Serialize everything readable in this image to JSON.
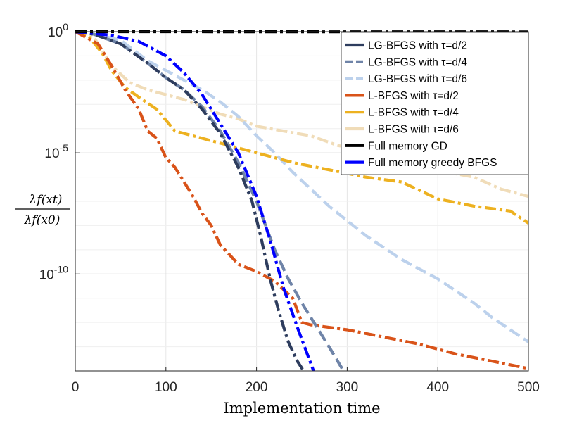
{
  "chart_data": {
    "type": "line",
    "title": "",
    "xlabel": "Implementation time",
    "ylabel_parts": {
      "numerator": "λf(xt)",
      "denominator": "λf(x0)"
    },
    "xlim": [
      0,
      500
    ],
    "ylim_log10": [
      -14,
      0
    ],
    "x_ticks": [
      {
        "value": 0,
        "label": "0"
      },
      {
        "value": 100,
        "label": "100"
      },
      {
        "value": 200,
        "label": "200"
      },
      {
        "value": 300,
        "label": "300"
      },
      {
        "value": 400,
        "label": "400"
      },
      {
        "value": 500,
        "label": "500"
      }
    ],
    "y_ticks": [
      {
        "value": 0,
        "base": "10",
        "exp": "0"
      },
      {
        "value": -5,
        "base": "10",
        "exp": "-5"
      },
      {
        "value": -10,
        "base": "10",
        "exp": "-10"
      }
    ],
    "grid": true,
    "legend_position": "top-right",
    "series": [
      {
        "name": "LG-BFGS with τ=d/2",
        "color": "#2e3d5e",
        "style": "dashdot",
        "points": [
          [
            0,
            0
          ],
          [
            20,
            -0.1
          ],
          [
            50,
            -0.5
          ],
          [
            80,
            -1.3
          ],
          [
            100,
            -1.9
          ],
          [
            120,
            -2.4
          ],
          [
            140,
            -3.2
          ],
          [
            160,
            -4.2
          ],
          [
            180,
            -5.6
          ],
          [
            195,
            -7
          ],
          [
            205,
            -8.5
          ],
          [
            215,
            -10.2
          ],
          [
            225,
            -11.6
          ],
          [
            235,
            -12.8
          ],
          [
            245,
            -13.6
          ],
          [
            252,
            -14
          ]
        ]
      },
      {
        "name": "LG-BFGS with τ=d/4",
        "color": "#6f84a8",
        "style": "dashed",
        "points": [
          [
            0,
            0
          ],
          [
            20,
            -0.1
          ],
          [
            50,
            -0.5
          ],
          [
            80,
            -1.3
          ],
          [
            100,
            -1.9
          ],
          [
            120,
            -2.4
          ],
          [
            140,
            -3.1
          ],
          [
            160,
            -4.1
          ],
          [
            180,
            -5.4
          ],
          [
            200,
            -7
          ],
          [
            210,
            -8
          ],
          [
            220,
            -9
          ],
          [
            235,
            -10.2
          ],
          [
            250,
            -11.2
          ],
          [
            265,
            -12.1
          ],
          [
            280,
            -13
          ],
          [
            296,
            -14
          ]
        ]
      },
      {
        "name": "LG-BFGS with τ=d/6",
        "color": "#bcd1ec",
        "style": "dashed",
        "points": [
          [
            0,
            0
          ],
          [
            20,
            -0.1
          ],
          [
            50,
            -0.35
          ],
          [
            80,
            -1.2
          ],
          [
            110,
            -1.8
          ],
          [
            140,
            -2.4
          ],
          [
            160,
            -2.9
          ],
          [
            180,
            -3.5
          ],
          [
            200,
            -4.3
          ],
          [
            220,
            -5
          ],
          [
            240,
            -5.8
          ],
          [
            260,
            -6.5
          ],
          [
            280,
            -7.2
          ],
          [
            300,
            -7.8
          ],
          [
            320,
            -8.4
          ],
          [
            340,
            -8.9
          ],
          [
            360,
            -9.4
          ],
          [
            380,
            -9.8
          ],
          [
            400,
            -10.2
          ],
          [
            420,
            -10.7
          ],
          [
            440,
            -11.2
          ],
          [
            460,
            -11.8
          ],
          [
            480,
            -12.3
          ],
          [
            500,
            -12.8
          ]
        ]
      },
      {
        "name": "L-BFGS with τ=d/2",
        "color": "#d95319",
        "style": "dashdot",
        "points": [
          [
            0,
            0
          ],
          [
            25,
            -0.5
          ],
          [
            40,
            -1.4
          ],
          [
            55,
            -2.4
          ],
          [
            70,
            -3.2
          ],
          [
            80,
            -4.1
          ],
          [
            90,
            -4.4
          ],
          [
            100,
            -5.2
          ],
          [
            110,
            -5.6
          ],
          [
            120,
            -6.2
          ],
          [
            130,
            -6.8
          ],
          [
            140,
            -7.5
          ],
          [
            150,
            -8.0
          ],
          [
            160,
            -8.8
          ],
          [
            170,
            -9.2
          ],
          [
            180,
            -9.6
          ],
          [
            200,
            -9.9
          ],
          [
            220,
            -10.3
          ],
          [
            240,
            -11.0
          ],
          [
            250,
            -12.0
          ],
          [
            260,
            -12.1
          ],
          [
            300,
            -12.3
          ],
          [
            340,
            -12.6
          ],
          [
            380,
            -12.9
          ],
          [
            420,
            -13.3
          ],
          [
            460,
            -13.6
          ],
          [
            500,
            -13.9
          ]
        ]
      },
      {
        "name": "L-BFGS with τ=d/4",
        "color": "#edb120",
        "style": "dashdot",
        "points": [
          [
            0,
            0
          ],
          [
            15,
            -0.2
          ],
          [
            30,
            -0.9
          ],
          [
            40,
            -1.6
          ],
          [
            55,
            -2.3
          ],
          [
            70,
            -2.7
          ],
          [
            90,
            -3.2
          ],
          [
            110,
            -4.1
          ],
          [
            130,
            -4.3
          ],
          [
            160,
            -4.6
          ],
          [
            200,
            -5.0
          ],
          [
            240,
            -5.4
          ],
          [
            280,
            -5.7
          ],
          [
            320,
            -6.0
          ],
          [
            360,
            -6.2
          ],
          [
            400,
            -6.9
          ],
          [
            440,
            -7.2
          ],
          [
            480,
            -7.4
          ],
          [
            500,
            -7.9
          ]
        ]
      },
      {
        "name": "L-BFGS with τ=d/6",
        "color": "#f0dcb8",
        "style": "dashdot",
        "points": [
          [
            0,
            0
          ],
          [
            20,
            -0.2
          ],
          [
            40,
            -1.4
          ],
          [
            60,
            -2.1
          ],
          [
            80,
            -2.4
          ],
          [
            100,
            -2.6
          ],
          [
            120,
            -2.8
          ],
          [
            140,
            -3.1
          ],
          [
            160,
            -3.4
          ],
          [
            180,
            -3.6
          ],
          [
            200,
            -3.9
          ],
          [
            230,
            -4.1
          ],
          [
            260,
            -4.3
          ],
          [
            290,
            -4.7
          ],
          [
            320,
            -4.9
          ],
          [
            350,
            -5.2
          ],
          [
            380,
            -5.6
          ],
          [
            410,
            -5.8
          ],
          [
            440,
            -6.0
          ],
          [
            470,
            -6.5
          ],
          [
            500,
            -6.8
          ]
        ]
      },
      {
        "name": "Full memory GD",
        "color": "#000000",
        "style": "dashdot",
        "points": [
          [
            0,
            0
          ],
          [
            500,
            -0.01
          ]
        ]
      },
      {
        "name": "Full memory greedy BFGS",
        "color": "#0000ff",
        "style": "dashdot",
        "points": [
          [
            0,
            0
          ],
          [
            40,
            -0.15
          ],
          [
            70,
            -0.4
          ],
          [
            100,
            -1.0
          ],
          [
            120,
            -1.7
          ],
          [
            140,
            -2.6
          ],
          [
            160,
            -3.8
          ],
          [
            180,
            -5.0
          ],
          [
            200,
            -6.8
          ],
          [
            215,
            -8.6
          ],
          [
            230,
            -10.6
          ],
          [
            245,
            -12.2
          ],
          [
            255,
            -13.2
          ],
          [
            263,
            -14
          ]
        ]
      }
    ]
  }
}
